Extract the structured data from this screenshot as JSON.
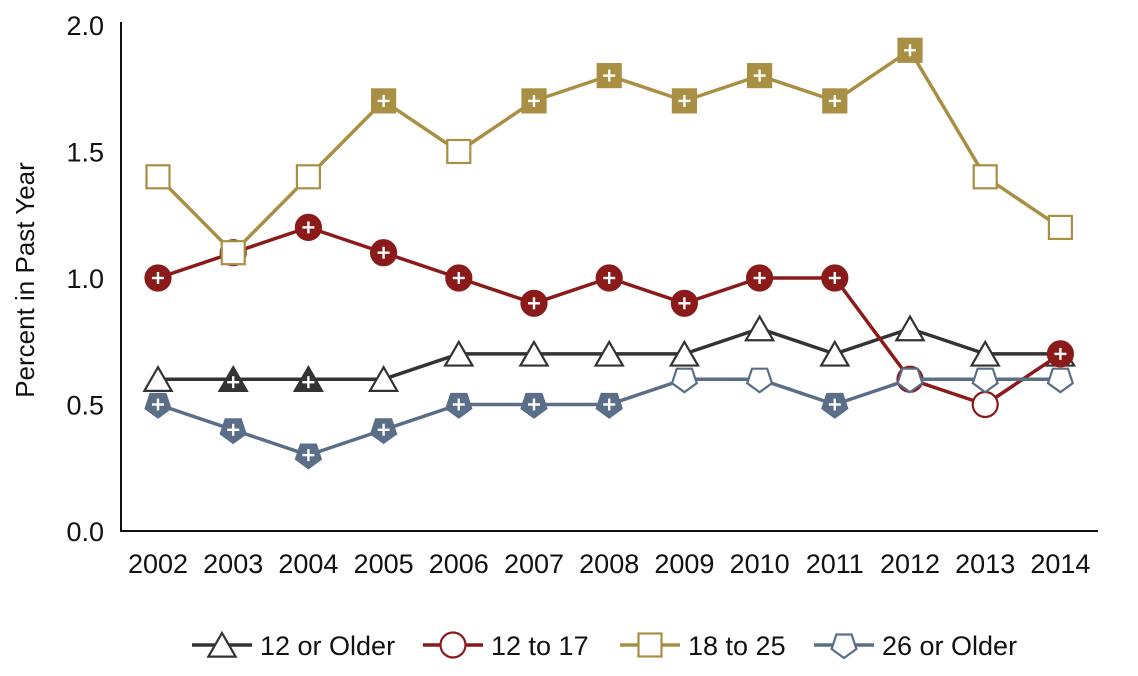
{
  "chart_data": {
    "type": "line",
    "title": "",
    "xlabel": "",
    "ylabel": "Percent in Past Year",
    "ylim": [
      0.0,
      2.0
    ],
    "yticks": [
      "0.0",
      "0.5",
      "1.0",
      "1.5",
      "2.0"
    ],
    "categories": [
      "2002",
      "2003",
      "2004",
      "2005",
      "2006",
      "2007",
      "2008",
      "2009",
      "2010",
      "2011",
      "2012",
      "2013",
      "2014"
    ],
    "legend_position": "bottom-center",
    "series": [
      {
        "name": "12 or Older",
        "marker": "triangle",
        "color": "#333333",
        "values": [
          0.6,
          0.6,
          0.6,
          0.6,
          0.7,
          0.7,
          0.7,
          0.7,
          0.8,
          0.7,
          0.8,
          0.7,
          0.7
        ],
        "significant": [
          false,
          true,
          true,
          false,
          false,
          false,
          false,
          false,
          false,
          false,
          false,
          false,
          false
        ]
      },
      {
        "name": "12 to 17",
        "marker": "circle",
        "color": "#8b1a1a",
        "values": [
          1.0,
          1.1,
          1.2,
          1.1,
          1.0,
          0.9,
          1.0,
          0.9,
          1.0,
          1.0,
          0.6,
          0.5,
          0.7
        ],
        "significant": [
          true,
          true,
          true,
          true,
          true,
          true,
          true,
          true,
          true,
          true,
          false,
          false,
          true
        ]
      },
      {
        "name": "18 to 25",
        "marker": "square",
        "color": "#a88f43",
        "values": [
          1.4,
          1.1,
          1.4,
          1.7,
          1.5,
          1.7,
          1.8,
          1.7,
          1.8,
          1.7,
          1.9,
          1.4,
          1.2
        ],
        "significant": [
          false,
          false,
          false,
          true,
          false,
          true,
          true,
          true,
          true,
          true,
          true,
          false,
          false
        ]
      },
      {
        "name": "26 or Older",
        "marker": "pentagon",
        "color": "#5a6e87",
        "values": [
          0.5,
          0.4,
          0.3,
          0.4,
          0.5,
          0.5,
          0.5,
          0.6,
          0.6,
          0.5,
          0.6,
          0.6,
          0.6
        ],
        "significant": [
          true,
          true,
          true,
          true,
          true,
          true,
          true,
          false,
          false,
          true,
          false,
          false,
          false
        ]
      }
    ]
  }
}
